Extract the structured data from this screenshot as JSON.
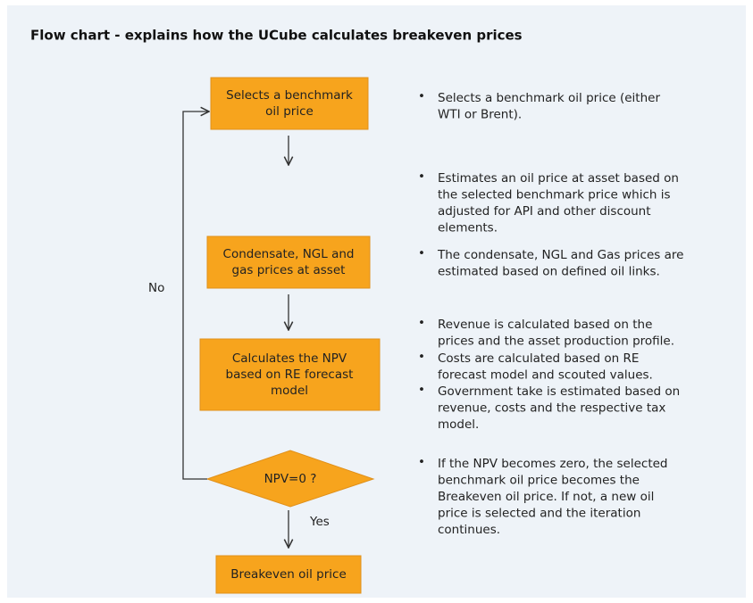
{
  "title": "Flow chart - explains how the UCube calculates breakeven prices",
  "nodes": [
    {
      "lines": [
        "Selects a benchmark",
        "oil price"
      ]
    },
    {
      "lines": [
        "Condensate, NGL and",
        "gas prices at asset"
      ]
    },
    {
      "lines": [
        "Calculates the NPV",
        "based on RE forecast",
        "model"
      ]
    },
    {
      "lines": [
        "NPV=0 ?"
      ]
    },
    {
      "lines": [
        "Breakeven oil price"
      ]
    }
  ],
  "edge_labels": {
    "no": "No",
    "yes": "Yes"
  },
  "bullets": [
    {
      "lines": [
        "Selects a benchmark oil price (either",
        "WTI or Brent)."
      ]
    },
    {
      "lines": [
        "Estimates an oil price at asset based on",
        "the selected benchmark price which is",
        "adjusted for API and other discount",
        "elements."
      ]
    },
    {
      "lines": [
        "The condensate, NGL and Gas prices are",
        "estimated based on defined oil links."
      ]
    },
    {
      "lines": [
        "Revenue is calculated based on the",
        "prices and the asset production profile."
      ]
    },
    {
      "lines": [
        "Costs are calculated based on RE",
        "forecast model and scouted values."
      ]
    },
    {
      "lines": [
        "Government take is estimated based on",
        "revenue, costs and the respective tax",
        "model."
      ]
    },
    {
      "lines": [
        "If the NPV becomes zero, the selected",
        "benchmark oil price becomes the",
        "Breakeven oil price. If not, a new oil",
        "price is selected and the iteration",
        "continues."
      ]
    }
  ]
}
